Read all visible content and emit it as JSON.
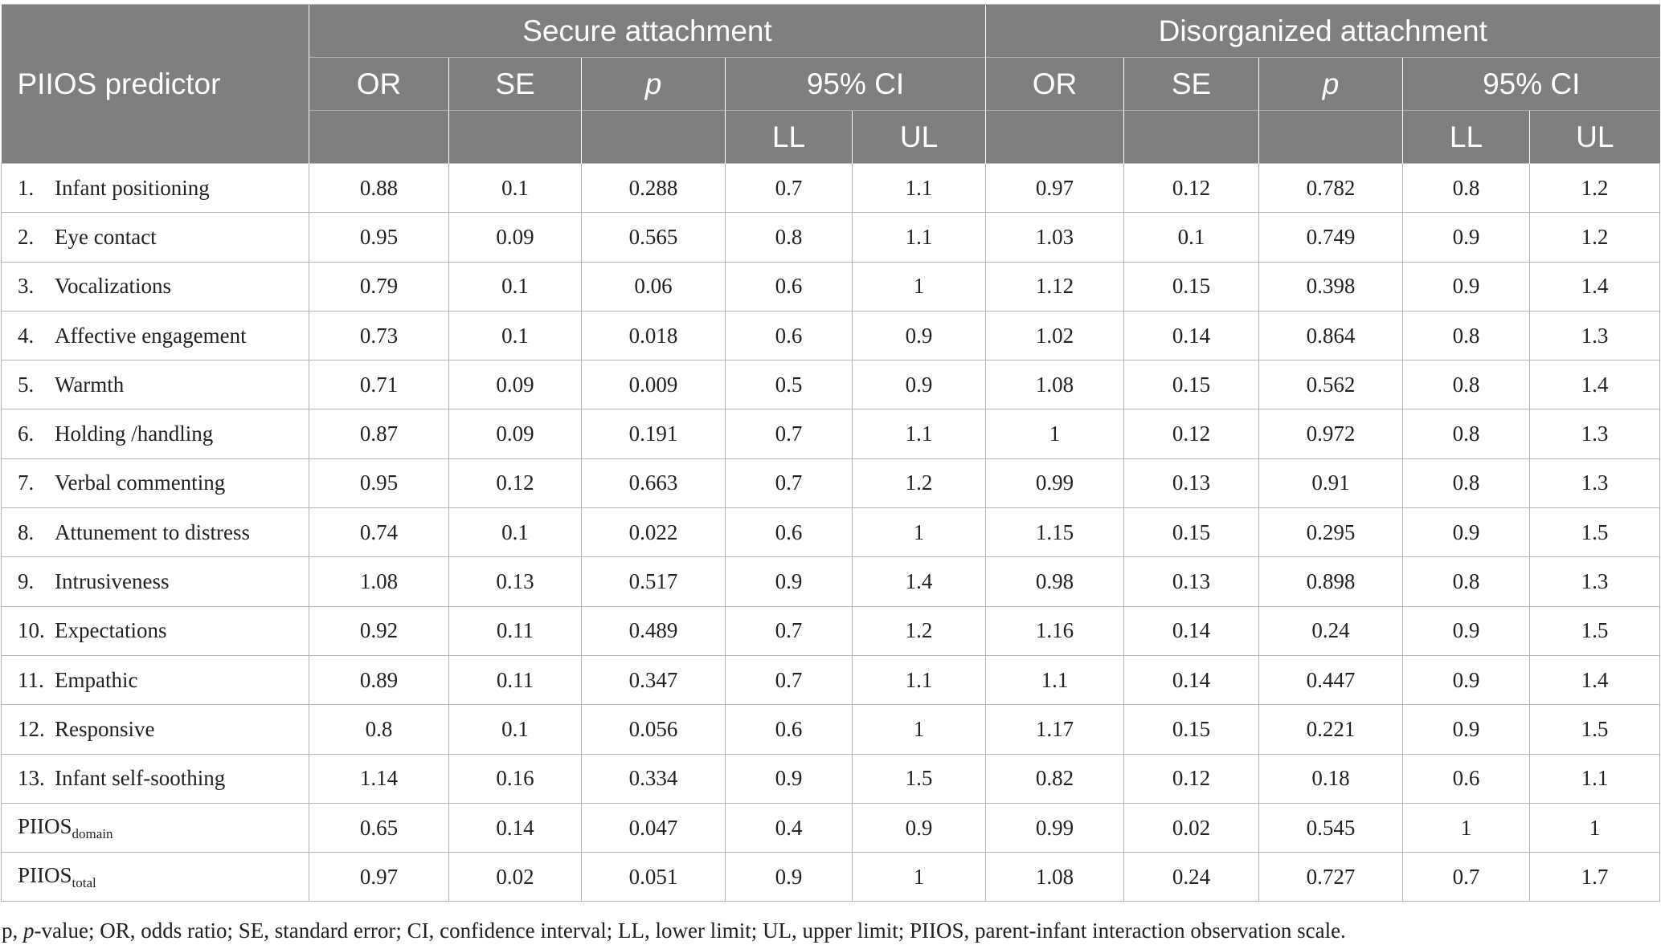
{
  "header": {
    "predictor": "PIIOS predictor",
    "group1": "Secure attachment",
    "group2": "Disorganized attachment",
    "or": "OR",
    "se": "SE",
    "p": "p",
    "ci": "95% CI",
    "ll": "LL",
    "ul": "UL"
  },
  "rows": [
    {
      "num": "1.",
      "label": "Infant positioning",
      "s": [
        "0.88",
        "0.1",
        "0.288",
        "0.7",
        "1.1"
      ],
      "d": [
        "0.97",
        "0.12",
        "0.782",
        "0.8",
        "1.2"
      ]
    },
    {
      "num": "2.",
      "label": "Eye contact",
      "s": [
        "0.95",
        "0.09",
        "0.565",
        "0.8",
        "1.1"
      ],
      "d": [
        "1.03",
        "0.1",
        "0.749",
        "0.9",
        "1.2"
      ]
    },
    {
      "num": "3.",
      "label": "Vocalizations",
      "s": [
        "0.79",
        "0.1",
        "0.06",
        "0.6",
        "1"
      ],
      "d": [
        "1.12",
        "0.15",
        "0.398",
        "0.9",
        "1.4"
      ]
    },
    {
      "num": "4.",
      "label": "Affective engagement",
      "s": [
        "0.73",
        "0.1",
        "0.018",
        "0.6",
        "0.9"
      ],
      "d": [
        "1.02",
        "0.14",
        "0.864",
        "0.8",
        "1.3"
      ]
    },
    {
      "num": "5.",
      "label": "Warmth",
      "s": [
        "0.71",
        "0.09",
        "0.009",
        "0.5",
        "0.9"
      ],
      "d": [
        "1.08",
        "0.15",
        "0.562",
        "0.8",
        "1.4"
      ]
    },
    {
      "num": "6.",
      "label": "Holding /handling",
      "s": [
        "0.87",
        "0.09",
        "0.191",
        "0.7",
        "1.1"
      ],
      "d": [
        "1",
        "0.12",
        "0.972",
        "0.8",
        "1.3"
      ]
    },
    {
      "num": "7.",
      "label": "Verbal commenting",
      "s": [
        "0.95",
        "0.12",
        "0.663",
        "0.7",
        "1.2"
      ],
      "d": [
        "0.99",
        "0.13",
        "0.91",
        "0.8",
        "1.3"
      ]
    },
    {
      "num": "8.",
      "label": "Attunement to distress",
      "s": [
        "0.74",
        "0.1",
        "0.022",
        "0.6",
        "1"
      ],
      "d": [
        "1.15",
        "0.15",
        "0.295",
        "0.9",
        "1.5"
      ]
    },
    {
      "num": "9.",
      "label": "Intrusiveness",
      "s": [
        "1.08",
        "0.13",
        "0.517",
        "0.9",
        "1.4"
      ],
      "d": [
        "0.98",
        "0.13",
        "0.898",
        "0.8",
        "1.3"
      ]
    },
    {
      "num": "10.",
      "label": "Expectations",
      "s": [
        "0.92",
        "0.11",
        "0.489",
        "0.7",
        "1.2"
      ],
      "d": [
        "1.16",
        "0.14",
        "0.24",
        "0.9",
        "1.5"
      ]
    },
    {
      "num": "11.",
      "label": "Empathic",
      "s": [
        "0.89",
        "0.11",
        "0.347",
        "0.7",
        "1.1"
      ],
      "d": [
        "1.1",
        "0.14",
        "0.447",
        "0.9",
        "1.4"
      ]
    },
    {
      "num": "12.",
      "label": "Responsive",
      "s": [
        "0.8",
        "0.1",
        "0.056",
        "0.6",
        "1"
      ],
      "d": [
        "1.17",
        "0.15",
        "0.221",
        "0.9",
        "1.5"
      ]
    },
    {
      "num": "13.",
      "label": "Infant self-soothing",
      "s": [
        "1.14",
        "0.16",
        "0.334",
        "0.9",
        "1.5"
      ],
      "d": [
        "0.82",
        "0.12",
        "0.18",
        "0.6",
        "1.1"
      ]
    }
  ],
  "summary": [
    {
      "base": "PIIOS",
      "sub": "domain",
      "s": [
        "0.65",
        "0.14",
        "0.047",
        "0.4",
        "0.9"
      ],
      "d": [
        "0.99",
        "0.02",
        "0.545",
        "1",
        "1"
      ]
    },
    {
      "base": "PIIOS",
      "sub": "total",
      "s": [
        "0.97",
        "0.02",
        "0.051",
        "0.9",
        "1"
      ],
      "d": [
        "1.08",
        "0.24",
        "0.727",
        "0.7",
        "1.7"
      ]
    }
  ],
  "footnote": {
    "start": "p, ",
    "italic": "p",
    "rest": "-value; OR, odds ratio; SE, standard error; CI, confidence interval; LL, lower limit; UL, upper limit; PIIOS, parent-infant interaction observation scale."
  }
}
